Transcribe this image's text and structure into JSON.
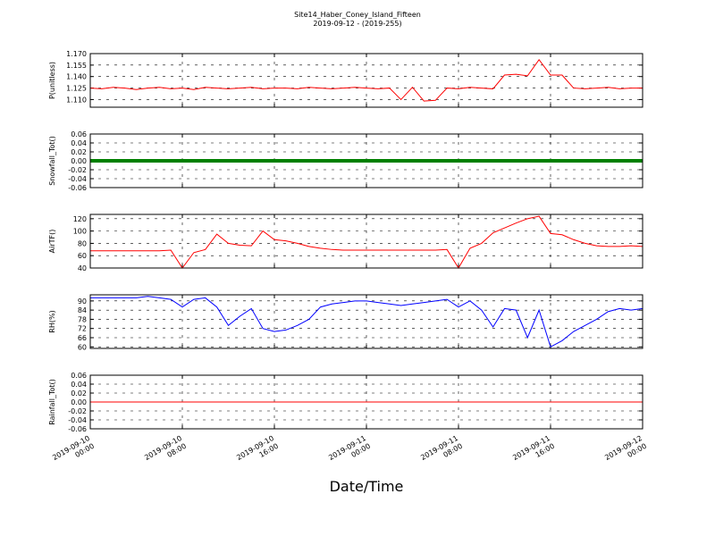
{
  "chart_data": [
    {
      "type": "line",
      "title": "Site14_Haber_Coney_Island_Fifteen",
      "subtitle": "2019-09-12 - (2019-255)",
      "ylabel": "P(unitless)",
      "color": "#ff0000",
      "x": [
        "2019-09-10 00:00",
        "2019-09-10 01:00",
        "2019-09-10 02:00",
        "2019-09-10 03:00",
        "2019-09-10 04:00",
        "2019-09-10 05:00",
        "2019-09-10 06:00",
        "2019-09-10 07:00",
        "2019-09-10 08:00",
        "2019-09-10 09:00",
        "2019-09-10 10:00",
        "2019-09-10 11:00",
        "2019-09-10 12:00",
        "2019-09-10 13:00",
        "2019-09-10 14:00",
        "2019-09-10 15:00",
        "2019-09-10 16:00",
        "2019-09-10 17:00",
        "2019-09-10 18:00",
        "2019-09-10 19:00",
        "2019-09-10 20:00",
        "2019-09-10 21:00",
        "2019-09-10 22:00",
        "2019-09-10 23:00",
        "2019-09-11 00:00",
        "2019-09-11 01:00",
        "2019-09-11 02:00",
        "2019-09-11 03:00",
        "2019-09-11 04:00",
        "2019-09-11 05:00",
        "2019-09-11 06:00",
        "2019-09-11 07:00",
        "2019-09-11 08:00",
        "2019-09-11 09:00",
        "2019-09-11 10:00",
        "2019-09-11 11:00",
        "2019-09-11 12:00",
        "2019-09-11 13:00",
        "2019-09-11 14:00",
        "2019-09-11 15:00",
        "2019-09-11 16:00",
        "2019-09-11 17:00",
        "2019-09-11 18:00",
        "2019-09-11 19:00",
        "2019-09-11 20:00",
        "2019-09-11 21:00",
        "2019-09-11 22:00",
        "2019-09-11 23:00",
        "2019-09-12 00:00"
      ],
      "values": [
        1.125,
        1.124,
        1.126,
        1.125,
        1.123,
        1.125,
        1.126,
        1.124,
        1.125,
        1.123,
        1.126,
        1.125,
        1.124,
        1.125,
        1.126,
        1.124,
        1.125,
        1.125,
        1.124,
        1.126,
        1.125,
        1.124,
        1.125,
        1.126,
        1.125,
        1.124,
        1.125,
        1.11,
        1.126,
        1.108,
        1.109,
        1.125,
        1.124,
        1.126,
        1.125,
        1.124,
        1.142,
        1.143,
        1.141,
        1.162,
        1.142,
        1.142,
        1.125,
        1.124,
        1.125,
        1.126,
        1.124,
        1.125,
        1.125
      ],
      "ylim": [
        1.1,
        1.17
      ],
      "yticks": [
        {
          "value": 1.11,
          "label": "1.110"
        },
        {
          "value": 1.125,
          "label": "1.125"
        },
        {
          "value": 1.14,
          "label": "1.140"
        },
        {
          "value": 1.155,
          "label": "1.155"
        },
        {
          "value": 1.17,
          "label": "1.170"
        }
      ],
      "grid": true
    },
    {
      "type": "line",
      "ylabel": "Snowfall_Tot()",
      "color": "#008000",
      "x": [
        "2019-09-10 00:00",
        "2019-09-10 01:00",
        "2019-09-10 02:00",
        "2019-09-10 03:00",
        "2019-09-10 04:00",
        "2019-09-10 05:00",
        "2019-09-10 06:00",
        "2019-09-10 07:00",
        "2019-09-10 08:00",
        "2019-09-10 09:00",
        "2019-09-10 10:00",
        "2019-09-10 11:00",
        "2019-09-10 12:00",
        "2019-09-10 13:00",
        "2019-09-10 14:00",
        "2019-09-10 15:00",
        "2019-09-10 16:00",
        "2019-09-10 17:00",
        "2019-09-10 18:00",
        "2019-09-10 19:00",
        "2019-09-10 20:00",
        "2019-09-10 21:00",
        "2019-09-10 22:00",
        "2019-09-10 23:00",
        "2019-09-11 00:00",
        "2019-09-11 01:00",
        "2019-09-11 02:00",
        "2019-09-11 03:00",
        "2019-09-11 04:00",
        "2019-09-11 05:00",
        "2019-09-11 06:00",
        "2019-09-11 07:00",
        "2019-09-11 08:00",
        "2019-09-11 09:00",
        "2019-09-11 10:00",
        "2019-09-11 11:00",
        "2019-09-11 12:00",
        "2019-09-11 13:00",
        "2019-09-11 14:00",
        "2019-09-11 15:00",
        "2019-09-11 16:00",
        "2019-09-11 17:00",
        "2019-09-11 18:00",
        "2019-09-11 19:00",
        "2019-09-11 20:00",
        "2019-09-11 21:00",
        "2019-09-11 22:00",
        "2019-09-11 23:00",
        "2019-09-12 00:00"
      ],
      "values": [
        0,
        0,
        0,
        0,
        0,
        0,
        0,
        0,
        0,
        0,
        0,
        0,
        0,
        0,
        0,
        0,
        0,
        0,
        0,
        0,
        0,
        0,
        0,
        0,
        0,
        0,
        0,
        0,
        0,
        0,
        0,
        0,
        0,
        0,
        0,
        0,
        0,
        0,
        0,
        0,
        0,
        0,
        0,
        0,
        0,
        0,
        0,
        0,
        0
      ],
      "ylim": [
        -0.06,
        0.06
      ],
      "yticks": [
        {
          "value": -0.06,
          "label": "-0.06"
        },
        {
          "value": -0.04,
          "label": "-0.04"
        },
        {
          "value": -0.02,
          "label": "-0.02"
        },
        {
          "value": 0,
          "label": "0.00"
        },
        {
          "value": 0.02,
          "label": "0.02"
        },
        {
          "value": 0.04,
          "label": "0.04"
        },
        {
          "value": 0.06,
          "label": "0.06"
        }
      ],
      "grid": true
    },
    {
      "type": "line",
      "ylabel": "AirTF()",
      "color": "#ff0000",
      "x": [
        "2019-09-10 00:00",
        "2019-09-10 01:00",
        "2019-09-10 02:00",
        "2019-09-10 03:00",
        "2019-09-10 04:00",
        "2019-09-10 05:00",
        "2019-09-10 06:00",
        "2019-09-10 07:00",
        "2019-09-10 08:00",
        "2019-09-10 09:00",
        "2019-09-10 10:00",
        "2019-09-10 11:00",
        "2019-09-10 12:00",
        "2019-09-10 13:00",
        "2019-09-10 14:00",
        "2019-09-10 15:00",
        "2019-09-10 16:00",
        "2019-09-10 17:00",
        "2019-09-10 18:00",
        "2019-09-10 19:00",
        "2019-09-10 20:00",
        "2019-09-10 21:00",
        "2019-09-10 22:00",
        "2019-09-10 23:00",
        "2019-09-11 00:00",
        "2019-09-11 01:00",
        "2019-09-11 02:00",
        "2019-09-11 03:00",
        "2019-09-11 04:00",
        "2019-09-11 05:00",
        "2019-09-11 06:00",
        "2019-09-11 07:00",
        "2019-09-11 08:00",
        "2019-09-11 09:00",
        "2019-09-11 10:00",
        "2019-09-11 11:00",
        "2019-09-11 12:00",
        "2019-09-11 13:00",
        "2019-09-11 14:00",
        "2019-09-11 15:00",
        "2019-09-11 16:00",
        "2019-09-11 17:00",
        "2019-09-11 18:00",
        "2019-09-11 19:00",
        "2019-09-11 20:00",
        "2019-09-11 21:00",
        "2019-09-11 22:00",
        "2019-09-11 23:00",
        "2019-09-12 00:00"
      ],
      "values": [
        68,
        68,
        68,
        68,
        68,
        68,
        68,
        69,
        40,
        65,
        70,
        95,
        80,
        77,
        76,
        100,
        86,
        84,
        80,
        75,
        72,
        70,
        69,
        69,
        69,
        69,
        69,
        69,
        69,
        69,
        69,
        70,
        40,
        72,
        80,
        97,
        105,
        113,
        120,
        124,
        96,
        94,
        86,
        80,
        76,
        75,
        75,
        76,
        75
      ],
      "ylim": [
        40,
        127
      ],
      "yticks": [
        40,
        60,
        80,
        100,
        120
      ],
      "grid": true
    },
    {
      "type": "line",
      "ylabel": "RH(%)",
      "color": "#0000ff",
      "x": [
        "2019-09-10 00:00",
        "2019-09-10 01:00",
        "2019-09-10 02:00",
        "2019-09-10 03:00",
        "2019-09-10 04:00",
        "2019-09-10 05:00",
        "2019-09-10 06:00",
        "2019-09-10 07:00",
        "2019-09-10 08:00",
        "2019-09-10 09:00",
        "2019-09-10 10:00",
        "2019-09-10 11:00",
        "2019-09-10 12:00",
        "2019-09-10 13:00",
        "2019-09-10 14:00",
        "2019-09-10 15:00",
        "2019-09-10 16:00",
        "2019-09-10 17:00",
        "2019-09-10 18:00",
        "2019-09-10 19:00",
        "2019-09-10 20:00",
        "2019-09-10 21:00",
        "2019-09-10 22:00",
        "2019-09-10 23:00",
        "2019-09-11 00:00",
        "2019-09-11 01:00",
        "2019-09-11 02:00",
        "2019-09-11 03:00",
        "2019-09-11 04:00",
        "2019-09-11 05:00",
        "2019-09-11 06:00",
        "2019-09-11 07:00",
        "2019-09-11 08:00",
        "2019-09-11 09:00",
        "2019-09-11 10:00",
        "2019-09-11 11:00",
        "2019-09-11 12:00",
        "2019-09-11 13:00",
        "2019-09-11 14:00",
        "2019-09-11 15:00",
        "2019-09-11 16:00",
        "2019-09-11 17:00",
        "2019-09-11 18:00",
        "2019-09-11 19:00",
        "2019-09-11 20:00",
        "2019-09-11 21:00",
        "2019-09-11 22:00",
        "2019-09-11 23:00",
        "2019-09-12 00:00"
      ],
      "values": [
        92,
        92,
        92,
        92,
        92,
        93,
        92,
        91,
        86,
        91,
        92,
        86,
        74,
        80,
        85,
        72,
        70,
        71,
        74,
        78,
        86,
        88,
        89,
        90,
        90,
        89,
        88,
        87,
        88,
        89,
        90,
        91,
        86,
        90,
        84,
        73,
        85,
        84,
        66,
        84,
        60,
        64,
        70,
        74,
        78,
        83,
        85,
        84,
        85
      ],
      "ylim": [
        59,
        94
      ],
      "yticks": [
        60,
        66,
        72,
        78,
        84,
        90
      ],
      "grid": true
    },
    {
      "type": "line",
      "ylabel": "Rainfall_Tot()",
      "xlabel": "Date/Time",
      "color": "#ff0000",
      "x": [
        "2019-09-10 00:00",
        "2019-09-10 01:00",
        "2019-09-10 02:00",
        "2019-09-10 03:00",
        "2019-09-10 04:00",
        "2019-09-10 05:00",
        "2019-09-10 06:00",
        "2019-09-10 07:00",
        "2019-09-10 08:00",
        "2019-09-10 09:00",
        "2019-09-10 10:00",
        "2019-09-10 11:00",
        "2019-09-10 12:00",
        "2019-09-10 13:00",
        "2019-09-10 14:00",
        "2019-09-10 15:00",
        "2019-09-10 16:00",
        "2019-09-10 17:00",
        "2019-09-10 18:00",
        "2019-09-10 19:00",
        "2019-09-10 20:00",
        "2019-09-10 21:00",
        "2019-09-10 22:00",
        "2019-09-10 23:00",
        "2019-09-11 00:00",
        "2019-09-11 01:00",
        "2019-09-11 02:00",
        "2019-09-11 03:00",
        "2019-09-11 04:00",
        "2019-09-11 05:00",
        "2019-09-11 06:00",
        "2019-09-11 07:00",
        "2019-09-11 08:00",
        "2019-09-11 09:00",
        "2019-09-11 10:00",
        "2019-09-11 11:00",
        "2019-09-11 12:00",
        "2019-09-11 13:00",
        "2019-09-11 14:00",
        "2019-09-11 15:00",
        "2019-09-11 16:00",
        "2019-09-11 17:00",
        "2019-09-11 18:00",
        "2019-09-11 19:00",
        "2019-09-11 20:00",
        "2019-09-11 21:00",
        "2019-09-11 22:00",
        "2019-09-11 23:00",
        "2019-09-12 00:00"
      ],
      "values": [
        0,
        0,
        0,
        0,
        0,
        0,
        0,
        0,
        0,
        0,
        0,
        0,
        0,
        0,
        0,
        0,
        0,
        0,
        0,
        0,
        0,
        0,
        0,
        0,
        0,
        0,
        0,
        0,
        0,
        0,
        0,
        0,
        0,
        0,
        0,
        0,
        0,
        0,
        0,
        0,
        0,
        0,
        0,
        0,
        0,
        0,
        0,
        0,
        0
      ],
      "ylim": [
        -0.06,
        0.06
      ],
      "yticks": [
        {
          "value": -0.06,
          "label": "-0.06"
        },
        {
          "value": -0.04,
          "label": "-0.04"
        },
        {
          "value": -0.02,
          "label": "-0.02"
        },
        {
          "value": 0,
          "label": "0.00"
        },
        {
          "value": 0.02,
          "label": "0.02"
        },
        {
          "value": 0.04,
          "label": "0.04"
        },
        {
          "value": 0.06,
          "label": "0.06"
        }
      ],
      "grid": true,
      "xlim": [
        "2019-09-10 00:00",
        "2019-09-12 00:00"
      ],
      "xticks": [
        "2019-09-10 00:00",
        "2019-09-10 08:00",
        "2019-09-10 16:00",
        "2019-09-11 00:00",
        "2019-09-11 08:00",
        "2019-09-11 16:00",
        "2019-09-12 00:00"
      ]
    }
  ]
}
